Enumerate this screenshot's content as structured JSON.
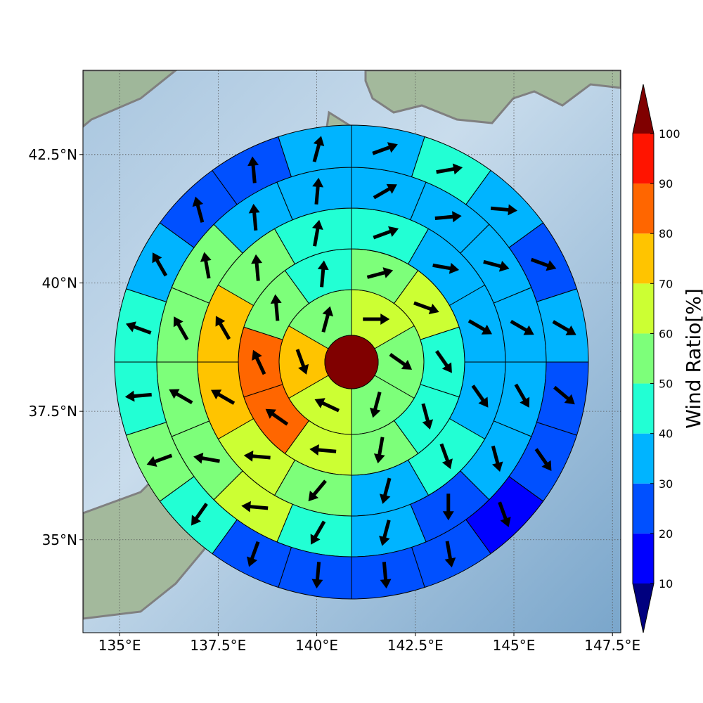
{
  "chart_data": {
    "type": "polar-sector-map",
    "xlim": [
      134.07,
      147.71
    ],
    "ylim": [
      33.19,
      44.14
    ],
    "xticks": [
      {
        "value": 135,
        "label": "135°E"
      },
      {
        "value": 137.5,
        "label": "137.5°E"
      },
      {
        "value": 140,
        "label": "140°E"
      },
      {
        "value": 142.5,
        "label": "142.5°E"
      },
      {
        "value": 145,
        "label": "145°E"
      },
      {
        "value": 147.5,
        "label": "147.5°E"
      }
    ],
    "yticks": [
      {
        "value": 35,
        "label": "35°N"
      },
      {
        "value": 37.5,
        "label": "37.5°N"
      },
      {
        "value": 40,
        "label": "40°N"
      },
      {
        "value": 42.5,
        "label": "42.5°N"
      }
    ],
    "grid": true,
    "colorbar": {
      "label": "Wind Ratio[%]",
      "ticks": [
        10,
        20,
        30,
        40,
        50,
        60,
        70,
        80,
        90,
        100
      ],
      "colors": [
        "#0000ff",
        "#0050ff",
        "#00b4ff",
        "#22ffd4",
        "#7dff7a",
        "#ccff33",
        "#ffc400",
        "#ff6600",
        "#ff1400"
      ],
      "under": "#00007f",
      "over": "#800000"
    },
    "center": {
      "value": 100
    },
    "rings": [
      {
        "values": [
          65,
          55,
          55,
          65,
          75,
          55
        ],
        "directions": [
          90,
          125,
          195,
          295,
          160,
          15
        ]
      },
      {
        "values": [
          55,
          65,
          45,
          45,
          55,
          65,
          85,
          85,
          55,
          45
        ],
        "directions": [
          75,
          110,
          145,
          165,
          190,
          275,
          305,
          335,
          355,
          5
        ]
      },
      {
        "values": [
          45,
          35,
          35,
          35,
          45,
          35,
          55,
          65,
          75,
          75,
          55,
          45
        ],
        "directions": [
          70,
          100,
          120,
          145,
          160,
          195,
          220,
          275,
          300,
          330,
          355,
          10
        ]
      },
      {
        "values": [
          35,
          35,
          35,
          35,
          35,
          35,
          25,
          35,
          45,
          65,
          55,
          55,
          55,
          55,
          35,
          35
        ],
        "directions": [
          60,
          85,
          105,
          120,
          150,
          165,
          180,
          195,
          210,
          275,
          280,
          300,
          330,
          350,
          355,
          5
        ]
      },
      {
        "values": [
          35,
          45,
          35,
          25,
          35,
          25,
          25,
          15,
          25,
          25,
          25,
          25,
          45,
          55,
          45,
          45,
          35,
          25,
          25,
          35
        ],
        "directions": [
          70,
          80,
          95,
          110,
          120,
          130,
          145,
          160,
          170,
          175,
          185,
          200,
          215,
          250,
          265,
          290,
          330,
          345,
          355,
          15
        ]
      }
    ]
  }
}
